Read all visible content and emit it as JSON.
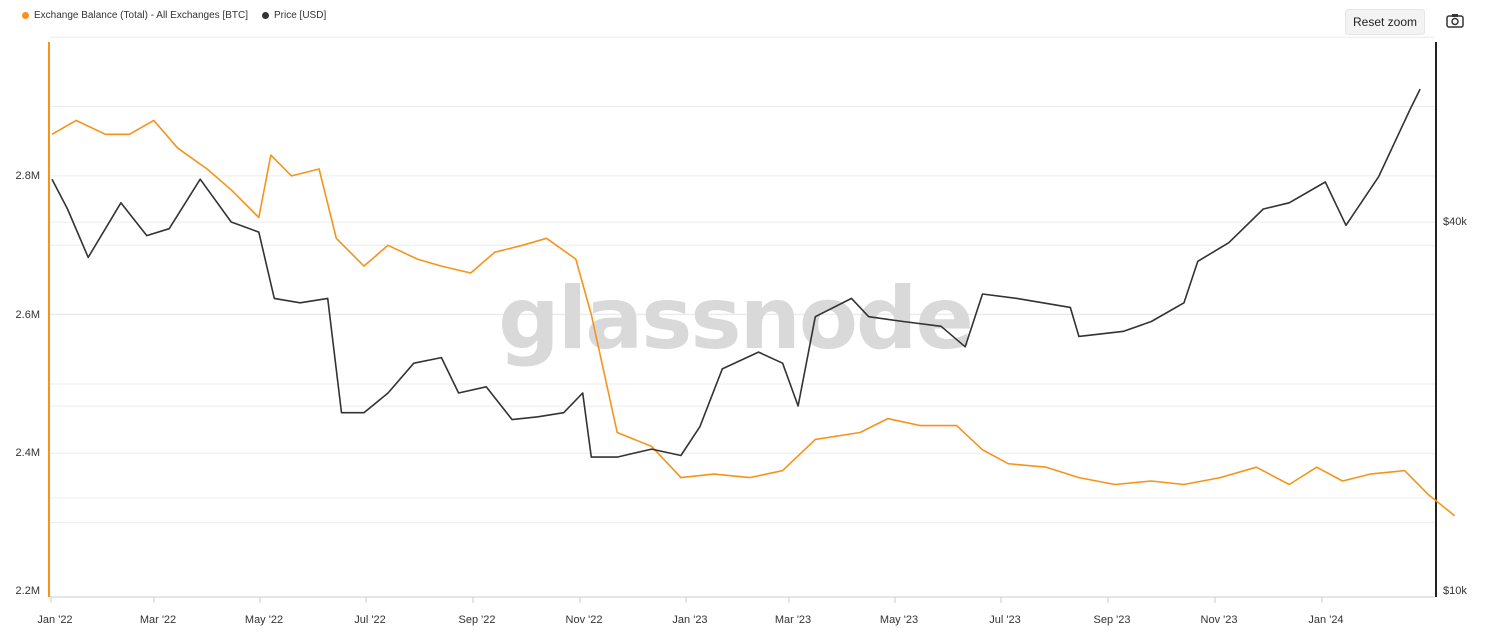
{
  "legend": {
    "series1": "Exchange Balance (Total) - All Exchanges [BTC]",
    "series2": "Price [USD]"
  },
  "toolbar": {
    "reset_zoom": "Reset zoom",
    "camera_icon": "camera-icon"
  },
  "watermark": "glassnode",
  "colors": {
    "balance": "#f7931a",
    "price": "#333333",
    "grid": "#ececec"
  },
  "chart_data": {
    "type": "line",
    "x_ticks": [
      "Jan '22",
      "Mar '22",
      "May '22",
      "Jul '22",
      "Sep '22",
      "Nov '22",
      "Jan '23",
      "Mar '23",
      "May '23",
      "Jul '23",
      "Sep '23",
      "Nov '23",
      "Jan '24"
    ],
    "y_left_ticks": [
      "2.2M",
      "2.4M",
      "2.6M",
      "2.8M"
    ],
    "y_right_ticks": [
      "$10k",
      "$40k"
    ],
    "y_left_range": [
      2200000,
      2900000
    ],
    "y_right_scale": "log",
    "y_right_range": [
      10000,
      70000
    ],
    "grid": true,
    "series": [
      {
        "name": "Exchange Balance (Total) - All Exchanges [BTC]",
        "axis": "left",
        "points": [
          [
            "2022-01-01",
            2860000
          ],
          [
            "2022-01-15",
            2880000
          ],
          [
            "2022-02-01",
            2860000
          ],
          [
            "2022-02-15",
            2860000
          ],
          [
            "2022-03-01",
            2880000
          ],
          [
            "2022-03-15",
            2840000
          ],
          [
            "2022-04-01",
            2810000
          ],
          [
            "2022-04-15",
            2780000
          ],
          [
            "2022-05-01",
            2740000
          ],
          [
            "2022-05-08",
            2830000
          ],
          [
            "2022-05-20",
            2800000
          ],
          [
            "2022-06-05",
            2810000
          ],
          [
            "2022-06-15",
            2710000
          ],
          [
            "2022-07-01",
            2670000
          ],
          [
            "2022-07-15",
            2700000
          ],
          [
            "2022-08-01",
            2680000
          ],
          [
            "2022-08-15",
            2670000
          ],
          [
            "2022-09-01",
            2660000
          ],
          [
            "2022-09-15",
            2690000
          ],
          [
            "2022-10-01",
            2700000
          ],
          [
            "2022-10-15",
            2710000
          ],
          [
            "2022-11-01",
            2680000
          ],
          [
            "2022-11-10",
            2600000
          ],
          [
            "2022-11-25",
            2430000
          ],
          [
            "2022-12-15",
            2410000
          ],
          [
            "2023-01-01",
            2365000
          ],
          [
            "2023-01-20",
            2370000
          ],
          [
            "2023-02-10",
            2365000
          ],
          [
            "2023-03-01",
            2375000
          ],
          [
            "2023-03-20",
            2420000
          ],
          [
            "2023-04-15",
            2430000
          ],
          [
            "2023-05-01",
            2450000
          ],
          [
            "2023-05-20",
            2440000
          ],
          [
            "2023-06-10",
            2440000
          ],
          [
            "2023-06-25",
            2405000
          ],
          [
            "2023-07-10",
            2385000
          ],
          [
            "2023-08-01",
            2380000
          ],
          [
            "2023-08-20",
            2365000
          ],
          [
            "2023-09-10",
            2355000
          ],
          [
            "2023-10-01",
            2360000
          ],
          [
            "2023-10-20",
            2355000
          ],
          [
            "2023-11-10",
            2365000
          ],
          [
            "2023-12-01",
            2380000
          ],
          [
            "2023-12-20",
            2355000
          ],
          [
            "2024-01-05",
            2380000
          ],
          [
            "2024-01-20",
            2360000
          ],
          [
            "2024-02-05",
            2370000
          ],
          [
            "2024-02-25",
            2375000
          ],
          [
            "2024-03-10",
            2340000
          ],
          [
            "2024-03-25",
            2310000
          ]
        ]
      },
      {
        "name": "Price [USD]",
        "axis": "right",
        "points": [
          [
            "2022-01-01",
            47000
          ],
          [
            "2022-01-10",
            42000
          ],
          [
            "2022-01-22",
            35000
          ],
          [
            "2022-02-10",
            43000
          ],
          [
            "2022-02-25",
            38000
          ],
          [
            "2022-03-10",
            39000
          ],
          [
            "2022-03-28",
            47000
          ],
          [
            "2022-04-15",
            40000
          ],
          [
            "2022-05-01",
            38500
          ],
          [
            "2022-05-10",
            30000
          ],
          [
            "2022-05-25",
            29500
          ],
          [
            "2022-06-10",
            30000
          ],
          [
            "2022-06-18",
            19500
          ],
          [
            "2022-07-01",
            19500
          ],
          [
            "2022-07-15",
            21000
          ],
          [
            "2022-07-30",
            23500
          ],
          [
            "2022-08-15",
            24000
          ],
          [
            "2022-08-25",
            21000
          ],
          [
            "2022-09-10",
            21500
          ],
          [
            "2022-09-25",
            19000
          ],
          [
            "2022-10-10",
            19200
          ],
          [
            "2022-10-25",
            19500
          ],
          [
            "2022-11-05",
            21000
          ],
          [
            "2022-11-10",
            16500
          ],
          [
            "2022-11-25",
            16500
          ],
          [
            "2022-12-15",
            17000
          ],
          [
            "2023-01-01",
            16600
          ],
          [
            "2023-01-12",
            18500
          ],
          [
            "2023-01-25",
            23000
          ],
          [
            "2023-02-15",
            24500
          ],
          [
            "2023-03-01",
            23500
          ],
          [
            "2023-03-10",
            20000
          ],
          [
            "2023-03-20",
            28000
          ],
          [
            "2023-04-10",
            30000
          ],
          [
            "2023-04-20",
            28000
          ],
          [
            "2023-05-10",
            27500
          ],
          [
            "2023-06-01",
            27000
          ],
          [
            "2023-06-15",
            25000
          ],
          [
            "2023-06-25",
            30500
          ],
          [
            "2023-07-15",
            30000
          ],
          [
            "2023-08-15",
            29000
          ],
          [
            "2023-08-20",
            26000
          ],
          [
            "2023-09-15",
            26500
          ],
          [
            "2023-10-01",
            27500
          ],
          [
            "2023-10-20",
            29500
          ],
          [
            "2023-10-28",
            34500
          ],
          [
            "2023-11-15",
            37000
          ],
          [
            "2023-12-05",
            42000
          ],
          [
            "2023-12-20",
            43000
          ],
          [
            "2024-01-10",
            46500
          ],
          [
            "2024-01-22",
            39500
          ],
          [
            "2024-02-10",
            47500
          ],
          [
            "2024-02-28",
            61000
          ],
          [
            "2024-03-05",
            66000
          ]
        ]
      }
    ]
  }
}
